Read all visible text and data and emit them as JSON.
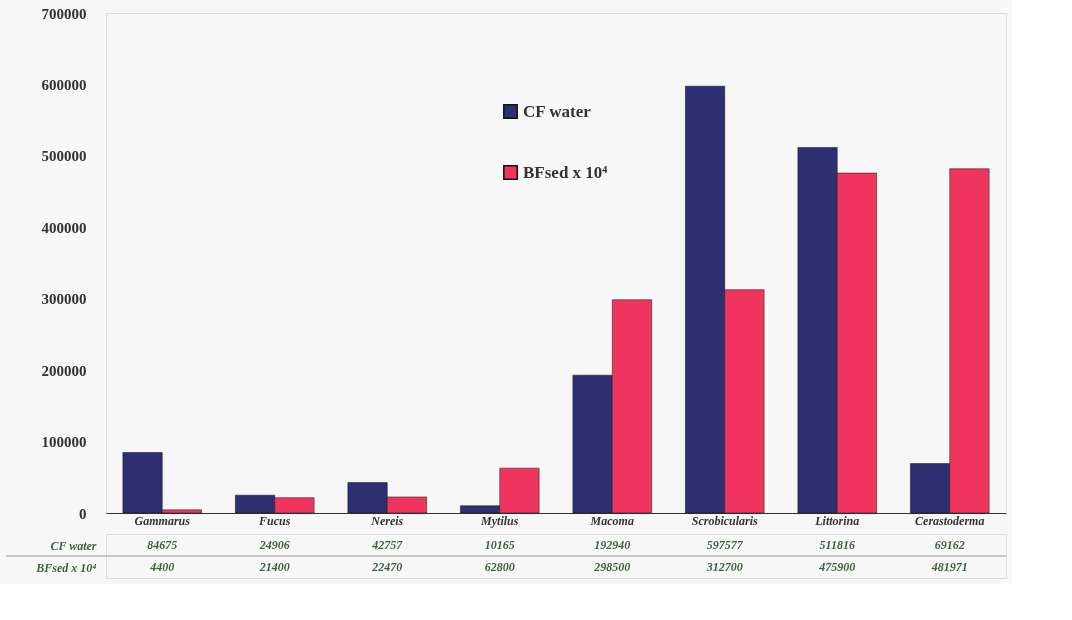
{
  "chart_data": {
    "type": "bar",
    "categories": [
      "Gammarus",
      "Fucus",
      "Nereis",
      "Mytilus",
      "Macoma",
      "Scrobicularis",
      "Littorina",
      "Cerastoderma"
    ],
    "series": [
      {
        "name": "CF water",
        "color": "#2e2f72",
        "values": [
          84675,
          24906,
          42757,
          10165,
          192940,
          597577,
          511816,
          69162
        ]
      },
      {
        "name": "BFsed x 10⁴",
        "color": "#f0365f",
        "values": [
          4400,
          21400,
          22470,
          62800,
          298500,
          312700,
          475900,
          481971
        ]
      }
    ],
    "ylim": [
      0,
      700000
    ],
    "yticks": [
      0,
      100000,
      200000,
      300000,
      400000,
      500000,
      600000,
      700000
    ],
    "grid": false,
    "legend": "top",
    "data_labels": true
  }
}
